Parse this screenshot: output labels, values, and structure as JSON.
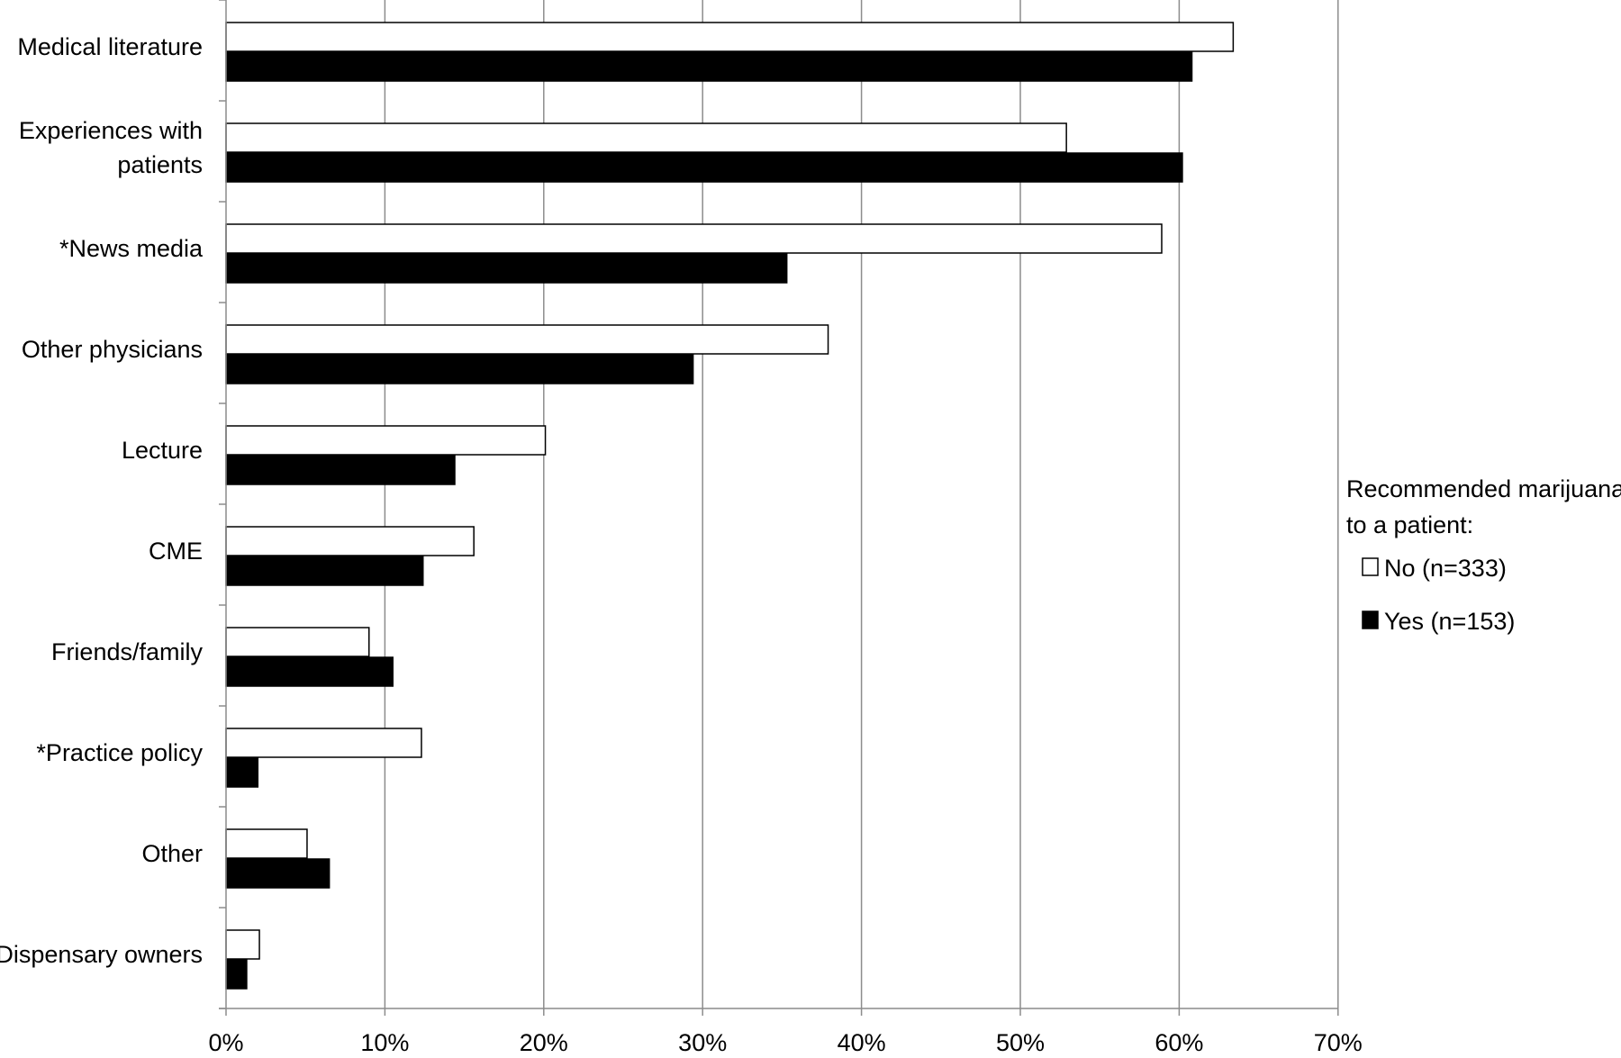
{
  "chart_data": {
    "type": "bar",
    "orientation": "horizontal",
    "categories": [
      [
        "Medical literature"
      ],
      [
        "Experiences with",
        "patients"
      ],
      [
        "*News media"
      ],
      [
        "Other physicians"
      ],
      [
        "Lecture"
      ],
      [
        "CME"
      ],
      [
        "Friends/family"
      ],
      [
        "*Practice policy"
      ],
      [
        "Other"
      ],
      [
        "Dispensary owners"
      ]
    ],
    "series": [
      {
        "name": "No (n=333)",
        "color": "#ffffff",
        "values": [
          63.4,
          52.9,
          58.9,
          37.9,
          20.1,
          15.6,
          9.0,
          12.3,
          5.1,
          2.1
        ]
      },
      {
        "name": "Yes (n=153)",
        "color": "#000000",
        "values": [
          60.8,
          60.2,
          35.3,
          29.4,
          14.4,
          12.4,
          10.5,
          2.0,
          6.5,
          1.3
        ]
      }
    ],
    "x_ticks": [
      "0%",
      "10%",
      "20%",
      "30%",
      "40%",
      "50%",
      "60%",
      "70%"
    ],
    "xlim": [
      0,
      70
    ],
    "grid": true,
    "legend": {
      "title": [
        "Recommended marijuana",
        "to a patient:"
      ],
      "placement": "right"
    }
  }
}
